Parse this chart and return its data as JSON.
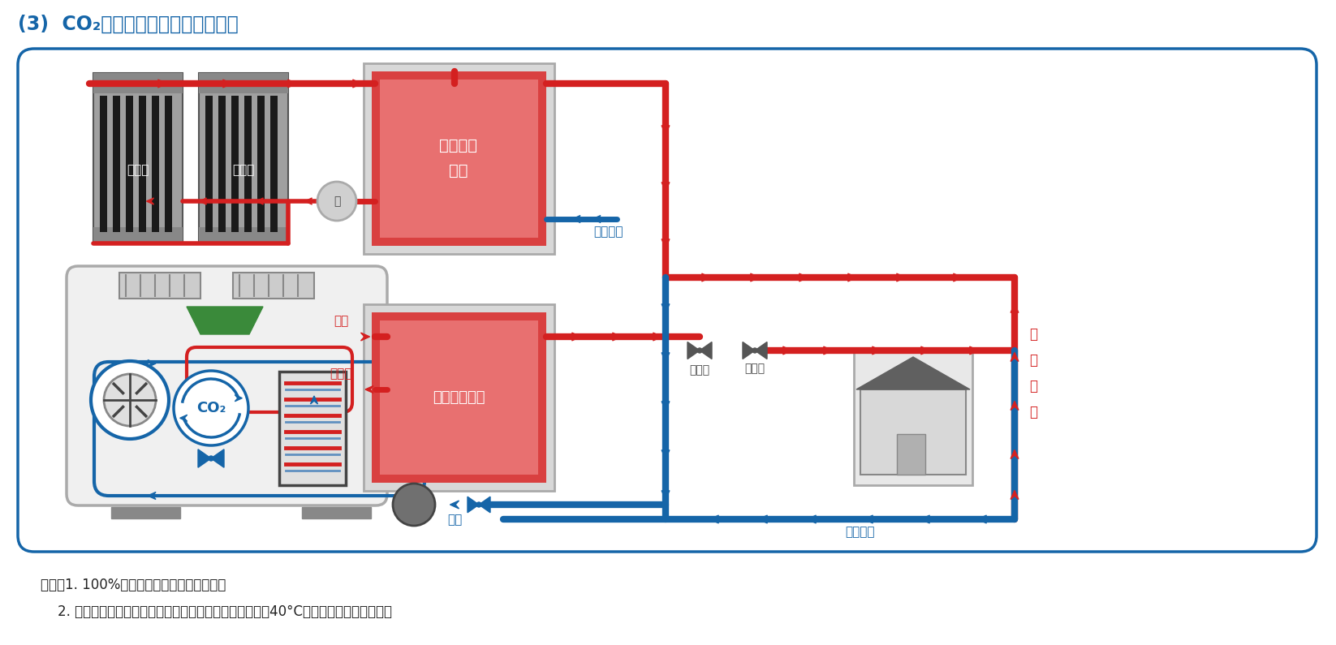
{
  "title": "(3)  CO₂热泵与太阳能联合应用系统",
  "bg_color": "#ffffff",
  "border_color": "#1565a8",
  "red_color": "#d42020",
  "red_pipe": "#d42020",
  "blue_color": "#1565a8",
  "gray_dark": "#444444",
  "gray_mid": "#888888",
  "gray_light": "#cccccc",
  "gray_box": "#aaaaaa",
  "green_color": "#3a8a3a",
  "red_tank_fill": "#d94040",
  "red_tank_fill2": "#e06060",
  "note1": "特点：1. 100%利用太阳能，充分利用能源；",
  "note2": "    2. 高温蓄热水筱可以弥补在阴雨天时，太阳能蓄热水筱中40°C以下水不能利用的弊端。",
  "label_solar": "太阳能",
  "label_mid_tank": "中温蓄热\n水筱",
  "label_high_tank": "高温储热水筱",
  "label_pump": "泵",
  "label_co2": "CO₂",
  "label_hot_water": "热水",
  "label_warm_water": "保温水",
  "label_cold_water": "冷水",
  "label_mix_valve1": "混水阀",
  "label_mix_valve2": "混水阀",
  "label_municipal1": "市政供水",
  "label_municipal2": "市政供水",
  "label_hot_supply": "热\n水\n供\n应"
}
